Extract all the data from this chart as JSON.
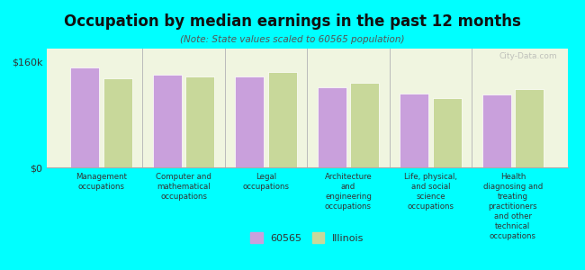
{
  "title": "Occupation by median earnings in the past 12 months",
  "subtitle": "(Note: State values scaled to 60565 population)",
  "categories": [
    "Management\noccupations",
    "Computer and\nmathematical\noccupations",
    "Legal\noccupations",
    "Architecture\nand\nengineering\noccupations",
    "Life, physical,\nand social\nscience\noccupations",
    "Health\ndiagnosing and\ntreating\npractitioners\nand other\ntechnical\noccupations"
  ],
  "values_60565": [
    152000,
    140000,
    138000,
    122000,
    112000,
    110000
  ],
  "values_illinois": [
    135000,
    138000,
    145000,
    128000,
    105000,
    118000
  ],
  "color_60565": "#c9a0dc",
  "color_illinois": "#c8d89a",
  "background_color": "#00ffff",
  "plot_bg_color": "#f0f5e0",
  "ylim": [
    0,
    180000
  ],
  "yticks": [
    0,
    160000
  ],
  "ytick_labels": [
    "$0",
    "$160k"
  ],
  "legend_label_60565": "60565",
  "legend_label_illinois": "Illinois",
  "watermark": "City-Data.com"
}
